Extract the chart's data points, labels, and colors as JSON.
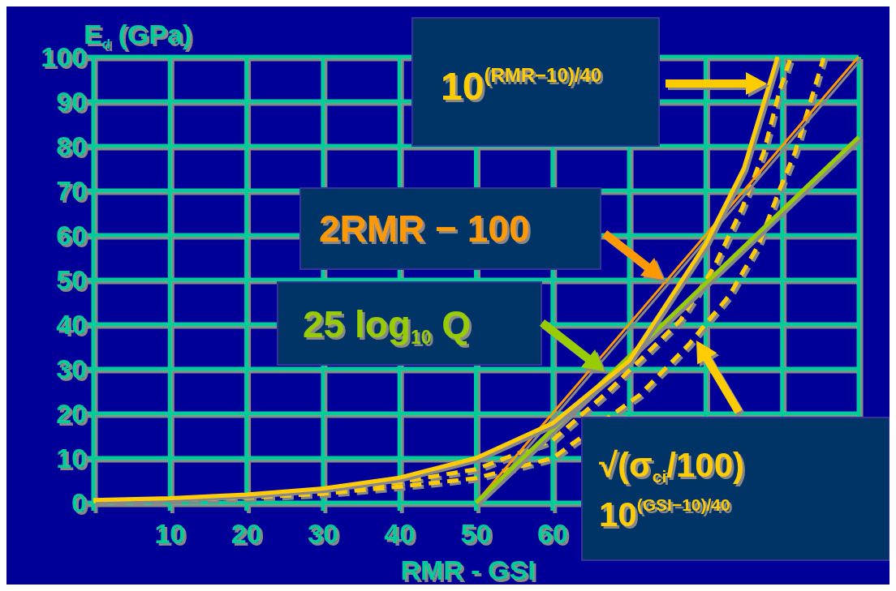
{
  "chart_data": {
    "type": "line",
    "xlabel": "RMR - GSI",
    "ylabel": "E$_{d}$ (GPa)",
    "xlim": [
      0,
      100
    ],
    "ylim": [
      0,
      100
    ],
    "xticks": [
      10,
      20,
      30,
      40,
      50,
      60,
      {
        "value": 70,
        "label": null
      },
      {
        "value": 80,
        "label": null
      },
      {
        "value": 90,
        "label": null
      },
      {
        "value": 100,
        "label": null
      }
    ],
    "yticks": [
      0,
      10,
      20,
      30,
      40,
      50,
      60,
      70,
      80,
      90,
      100
    ],
    "grid": true,
    "marker": "none",
    "series": [
      {
        "color": "#ffcc00",
        "line_style": "dashed",
        "x": [
          0,
          10,
          20,
          30,
          40,
          50,
          60,
          67.2,
          76.7,
          81.1,
          84.8,
          87.6,
          89.7,
          91.1
        ],
        "values": [
          0.4,
          0.8,
          1.4,
          2.6,
          4.6,
          7.5,
          14,
          24.9,
          40.9,
          52.9,
          66.2,
          78.7,
          92.7,
          99.7
        ]
      },
      {
        "color": "#ffcc00",
        "line_style": "dashed",
        "x": [
          0,
          10,
          20,
          30,
          40,
          50,
          60,
          71.4,
          77.8,
          83.1,
          86.9,
          89.7,
          91.7,
          93.7,
          95.4
        ],
        "values": [
          0.3,
          0.6,
          1.1,
          2,
          3.6,
          5.5,
          10,
          24.2,
          35.5,
          46.5,
          57.8,
          70.4,
          78.7,
          90,
          99.7
        ]
      },
      {
        "color": "#ff9900",
        "line_style": "solid",
        "x": [
          50,
          100
        ],
        "values": [
          0,
          100
        ]
      },
      {
        "color": "#99cc00",
        "line_style": "solid",
        "x": [
          50,
          100
        ],
        "values": [
          0,
          82
        ]
      },
      {
        "color": "#ffcc00",
        "line_style": "solid",
        "x": [
          0,
          10,
          20,
          30,
          40,
          50,
          60,
          70,
          80,
          85,
          89.4
        ],
        "values": [
          0.6,
          1,
          1.8,
          3.2,
          5.6,
          10,
          17.8,
          31.8,
          58,
          75,
          100
        ]
      }
    ],
    "annotations": [
      "10$^{(RMR−10)/40}$",
      "2RMR − 100",
      "25 log$_{10}$ Q",
      "√(σ$_{ci}$/100) 10$^{(GSI−10)/40}$"
    ]
  }
}
